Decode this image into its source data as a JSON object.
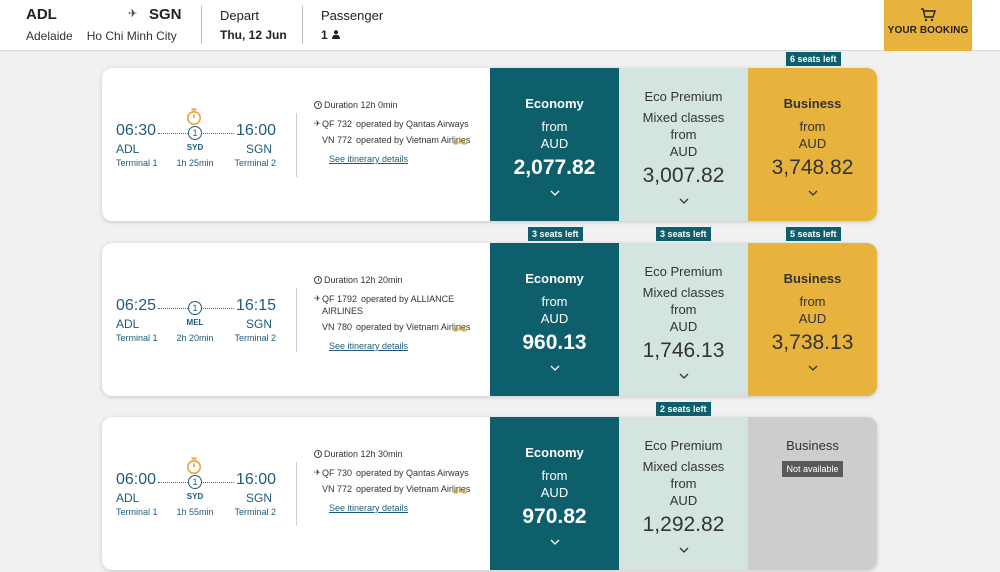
{
  "header": {
    "origin_code": "ADL",
    "dest_code": "SGN",
    "origin_city": "Adelaide",
    "dest_city": "Ho Chi Minh City",
    "depart_label": "Depart",
    "depart_value": "Thu, 12 Jun",
    "passenger_label": "Passenger",
    "passenger_value": "1",
    "booking_label": "YOUR BOOKING"
  },
  "flights": [
    {
      "dep_time": "06:30",
      "arr_time": "16:00",
      "dep_airport": "ADL",
      "arr_airport": "SGN",
      "dep_terminal": "Terminal 1",
      "arr_terminal": "Terminal 2",
      "stops": "1",
      "stop_code": "SYD",
      "stop_duration": "1h 25min",
      "duration": "Duration 12h 0min",
      "seg1_flight": "QF 732",
      "seg1_op": "operated by Qantas Airways",
      "seg2_flight": "VN 772",
      "seg2_op": "operated by Vietnam Airlines",
      "itinerary_link": "See itinerary details",
      "economy": {
        "label": "Economy",
        "from": "from",
        "currency": "AUD",
        "price": "2,077.82",
        "seats": ""
      },
      "premium": {
        "label": "Eco Premium",
        "mixed": "Mixed classes",
        "from": "from",
        "currency": "AUD",
        "price": "3,007.82",
        "seats": ""
      },
      "business": {
        "label": "Business",
        "from": "from",
        "currency": "AUD",
        "price": "3,748.82",
        "seats": "6 seats left"
      }
    },
    {
      "dep_time": "06:25",
      "arr_time": "16:15",
      "dep_airport": "ADL",
      "arr_airport": "SGN",
      "dep_terminal": "Terminal 1",
      "arr_terminal": "Terminal 2",
      "stops": "1",
      "stop_code": "MEL",
      "stop_duration": "2h 20min",
      "duration": "Duration 12h 20min",
      "seg1_flight": "QF 1792",
      "seg1_op": "operated by ALLIANCE AIRLINES",
      "seg2_flight": "VN 780",
      "seg2_op": "operated by Vietnam Airlines",
      "itinerary_link": "See itinerary details",
      "economy": {
        "label": "Economy",
        "from": "from",
        "currency": "AUD",
        "price": "960.13",
        "seats": "3 seats left"
      },
      "premium": {
        "label": "Eco Premium",
        "mixed": "Mixed classes",
        "from": "from",
        "currency": "AUD",
        "price": "1,746.13",
        "seats": "3 seats left"
      },
      "business": {
        "label": "Business",
        "from": "from",
        "currency": "AUD",
        "price": "3,738.13",
        "seats": "5 seats left"
      }
    },
    {
      "dep_time": "06:00",
      "arr_time": "16:00",
      "dep_airport": "ADL",
      "arr_airport": "SGN",
      "dep_terminal": "Terminal 1",
      "arr_terminal": "Terminal 2",
      "stops": "1",
      "stop_code": "SYD",
      "stop_duration": "1h 55min",
      "duration": "Duration 12h 30min",
      "seg1_flight": "QF 730",
      "seg1_op": "operated by Qantas Airways",
      "seg2_flight": "VN 772",
      "seg2_op": "operated by Vietnam Airlines",
      "itinerary_link": "See itinerary details",
      "economy": {
        "label": "Economy",
        "from": "from",
        "currency": "AUD",
        "price": "970.82",
        "seats": ""
      },
      "premium": {
        "label": "Eco Premium",
        "mixed": "Mixed classes",
        "from": "from",
        "currency": "AUD",
        "price": "1,292.82",
        "seats": "2 seats left"
      },
      "business": {
        "label": "Business",
        "status": "Not available",
        "seats": ""
      }
    }
  ],
  "icons": {
    "plane": "plane-icon",
    "cart": "cart-icon",
    "person": "person-icon",
    "clock": "clock-icon",
    "timer": "timer-icon",
    "chevron": "chevron-down-icon",
    "lotus": "vietnam-airlines-lotus-icon"
  },
  "colors": {
    "economy": "#0d5f6b",
    "premium": "#d4e4e1",
    "business": "#e8b33d",
    "unavailable": "#cdcdcd",
    "text_primary": "#1f5b79"
  }
}
